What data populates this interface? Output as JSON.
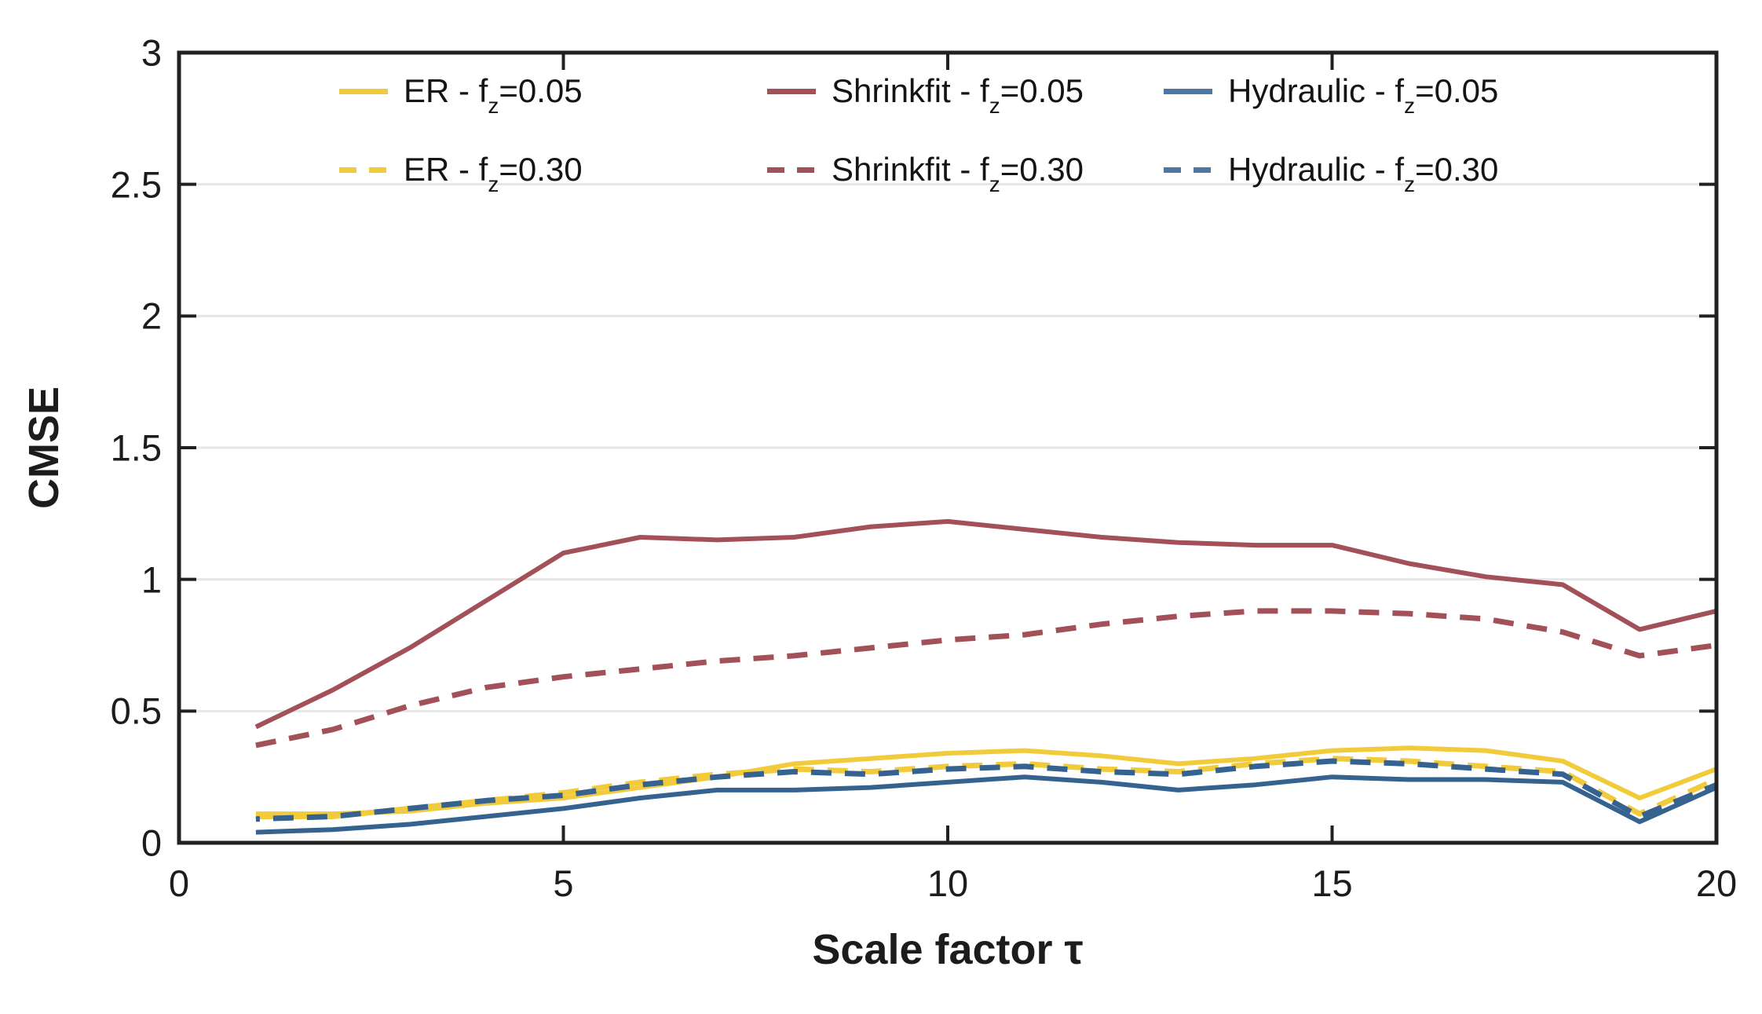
{
  "axes": {
    "ylabel": "CMSE",
    "xlabel": "Scale factor τ",
    "x_ticks": [
      {
        "label": "0",
        "value": 0
      },
      {
        "label": "5",
        "value": 5
      },
      {
        "label": "10",
        "value": 10
      },
      {
        "label": "15",
        "value": 15
      },
      {
        "label": "20",
        "value": 20
      }
    ],
    "y_ticks": [
      {
        "label": "0",
        "value": 0
      },
      {
        "label": "0.5",
        "value": 0.5
      },
      {
        "label": "1",
        "value": 1
      },
      {
        "label": "1.5",
        "value": 1.5
      },
      {
        "label": "2",
        "value": 2
      },
      {
        "label": "2.5",
        "value": 2.5
      },
      {
        "label": "3",
        "value": 3
      }
    ]
  },
  "legend": {
    "items": [
      {
        "name": "ER - f_z=0.05",
        "prefix": "ER - f",
        "sub": "z",
        "suffix": "=0.05",
        "color": "#F2CB3B",
        "dash": false
      },
      {
        "name": "Shrinkfit - f_z=0.05",
        "prefix": "Shrinkfit - f",
        "sub": "z",
        "suffix": "=0.05",
        "color": "#A25159",
        "dash": false
      },
      {
        "name": "Hydraulic - f_z=0.05",
        "prefix": "Hydraulic - f",
        "sub": "z",
        "suffix": "=0.05",
        "color": "#4C77A5",
        "dash": false
      },
      {
        "name": "ER - f_z=0.30",
        "prefix": "ER - f",
        "sub": "z",
        "suffix": "=0.30",
        "color": "#F2CB3B",
        "dash": true
      },
      {
        "name": "Shrinkfit - f_z=0.30",
        "prefix": "Shrinkfit - f",
        "sub": "z",
        "suffix": "=0.30",
        "color": "#A25159",
        "dash": true
      },
      {
        "name": "Hydraulic - f_z=0.30",
        "prefix": "Hydraulic - f",
        "sub": "z",
        "suffix": "=0.30",
        "color": "#4C77A5",
        "dash": true
      }
    ]
  },
  "chart_data": {
    "type": "line",
    "title": "",
    "xlabel": "Scale factor τ",
    "ylabel": "CMSE",
    "xlim": [
      0,
      20
    ],
    "ylim": [
      0,
      3
    ],
    "grid": "horizontal",
    "legend_position": "top-center",
    "y_grid_values": [
      0.5,
      1,
      1.5,
      2,
      2.5
    ],
    "x_tick_values": [
      0,
      5,
      10,
      15,
      20
    ],
    "y_tick_values": [
      0.5,
      1,
      1.5,
      2,
      2.5
    ],
    "x": [
      1,
      2,
      3,
      4,
      5,
      6,
      7,
      8,
      9,
      10,
      11,
      12,
      13,
      14,
      15,
      16,
      17,
      18,
      19,
      20
    ],
    "series": [
      {
        "name": "ER - f_z=0.05",
        "color": "#F2CB3B",
        "dash": false,
        "width": 6,
        "values": [
          0.11,
          0.11,
          0.12,
          0.15,
          0.17,
          0.21,
          0.25,
          0.3,
          0.32,
          0.34,
          0.35,
          0.33,
          0.3,
          0.32,
          0.35,
          0.36,
          0.35,
          0.31,
          0.17,
          0.28
        ]
      },
      {
        "name": "Shrinkfit - f_z=0.05",
        "color": "#A25159",
        "dash": false,
        "width": 6,
        "values": [
          0.44,
          0.58,
          0.74,
          0.92,
          1.1,
          1.16,
          1.15,
          1.16,
          1.2,
          1.22,
          1.19,
          1.16,
          1.14,
          1.13,
          1.13,
          1.06,
          1.01,
          0.98,
          0.81,
          0.88
        ]
      },
      {
        "name": "Hydraulic - f_z=0.05",
        "color": "#35628F",
        "dash": false,
        "width": 6,
        "values": [
          0.04,
          0.05,
          0.07,
          0.1,
          0.13,
          0.17,
          0.2,
          0.2,
          0.21,
          0.23,
          0.25,
          0.23,
          0.2,
          0.22,
          0.25,
          0.24,
          0.24,
          0.23,
          0.08,
          0.21
        ]
      },
      {
        "name": "ER - f_z=0.30",
        "color": "#F2CB3B",
        "dash": true,
        "width": 7,
        "values": [
          0.1,
          0.1,
          0.13,
          0.16,
          0.19,
          0.23,
          0.26,
          0.28,
          0.27,
          0.29,
          0.3,
          0.28,
          0.27,
          0.3,
          0.32,
          0.31,
          0.29,
          0.27,
          0.11,
          0.24
        ]
      },
      {
        "name": "Shrinkfit - f_z=0.30",
        "color": "#A25159",
        "dash": true,
        "width": 7,
        "values": [
          0.37,
          0.43,
          0.52,
          0.59,
          0.63,
          0.66,
          0.69,
          0.71,
          0.74,
          0.77,
          0.79,
          0.83,
          0.86,
          0.88,
          0.88,
          0.87,
          0.85,
          0.8,
          0.71,
          0.75
        ]
      },
      {
        "name": "Hydraulic - f_z=0.30",
        "color": "#35628F",
        "dash": true,
        "width": 7,
        "values": [
          0.09,
          0.1,
          0.13,
          0.16,
          0.18,
          0.22,
          0.25,
          0.27,
          0.26,
          0.28,
          0.29,
          0.27,
          0.26,
          0.29,
          0.31,
          0.3,
          0.28,
          0.26,
          0.1,
          0.22
        ]
      }
    ],
    "style": {
      "axis_color": "#212121",
      "grid_color": "#E6E6E6",
      "background": "#FFFFFF"
    }
  }
}
